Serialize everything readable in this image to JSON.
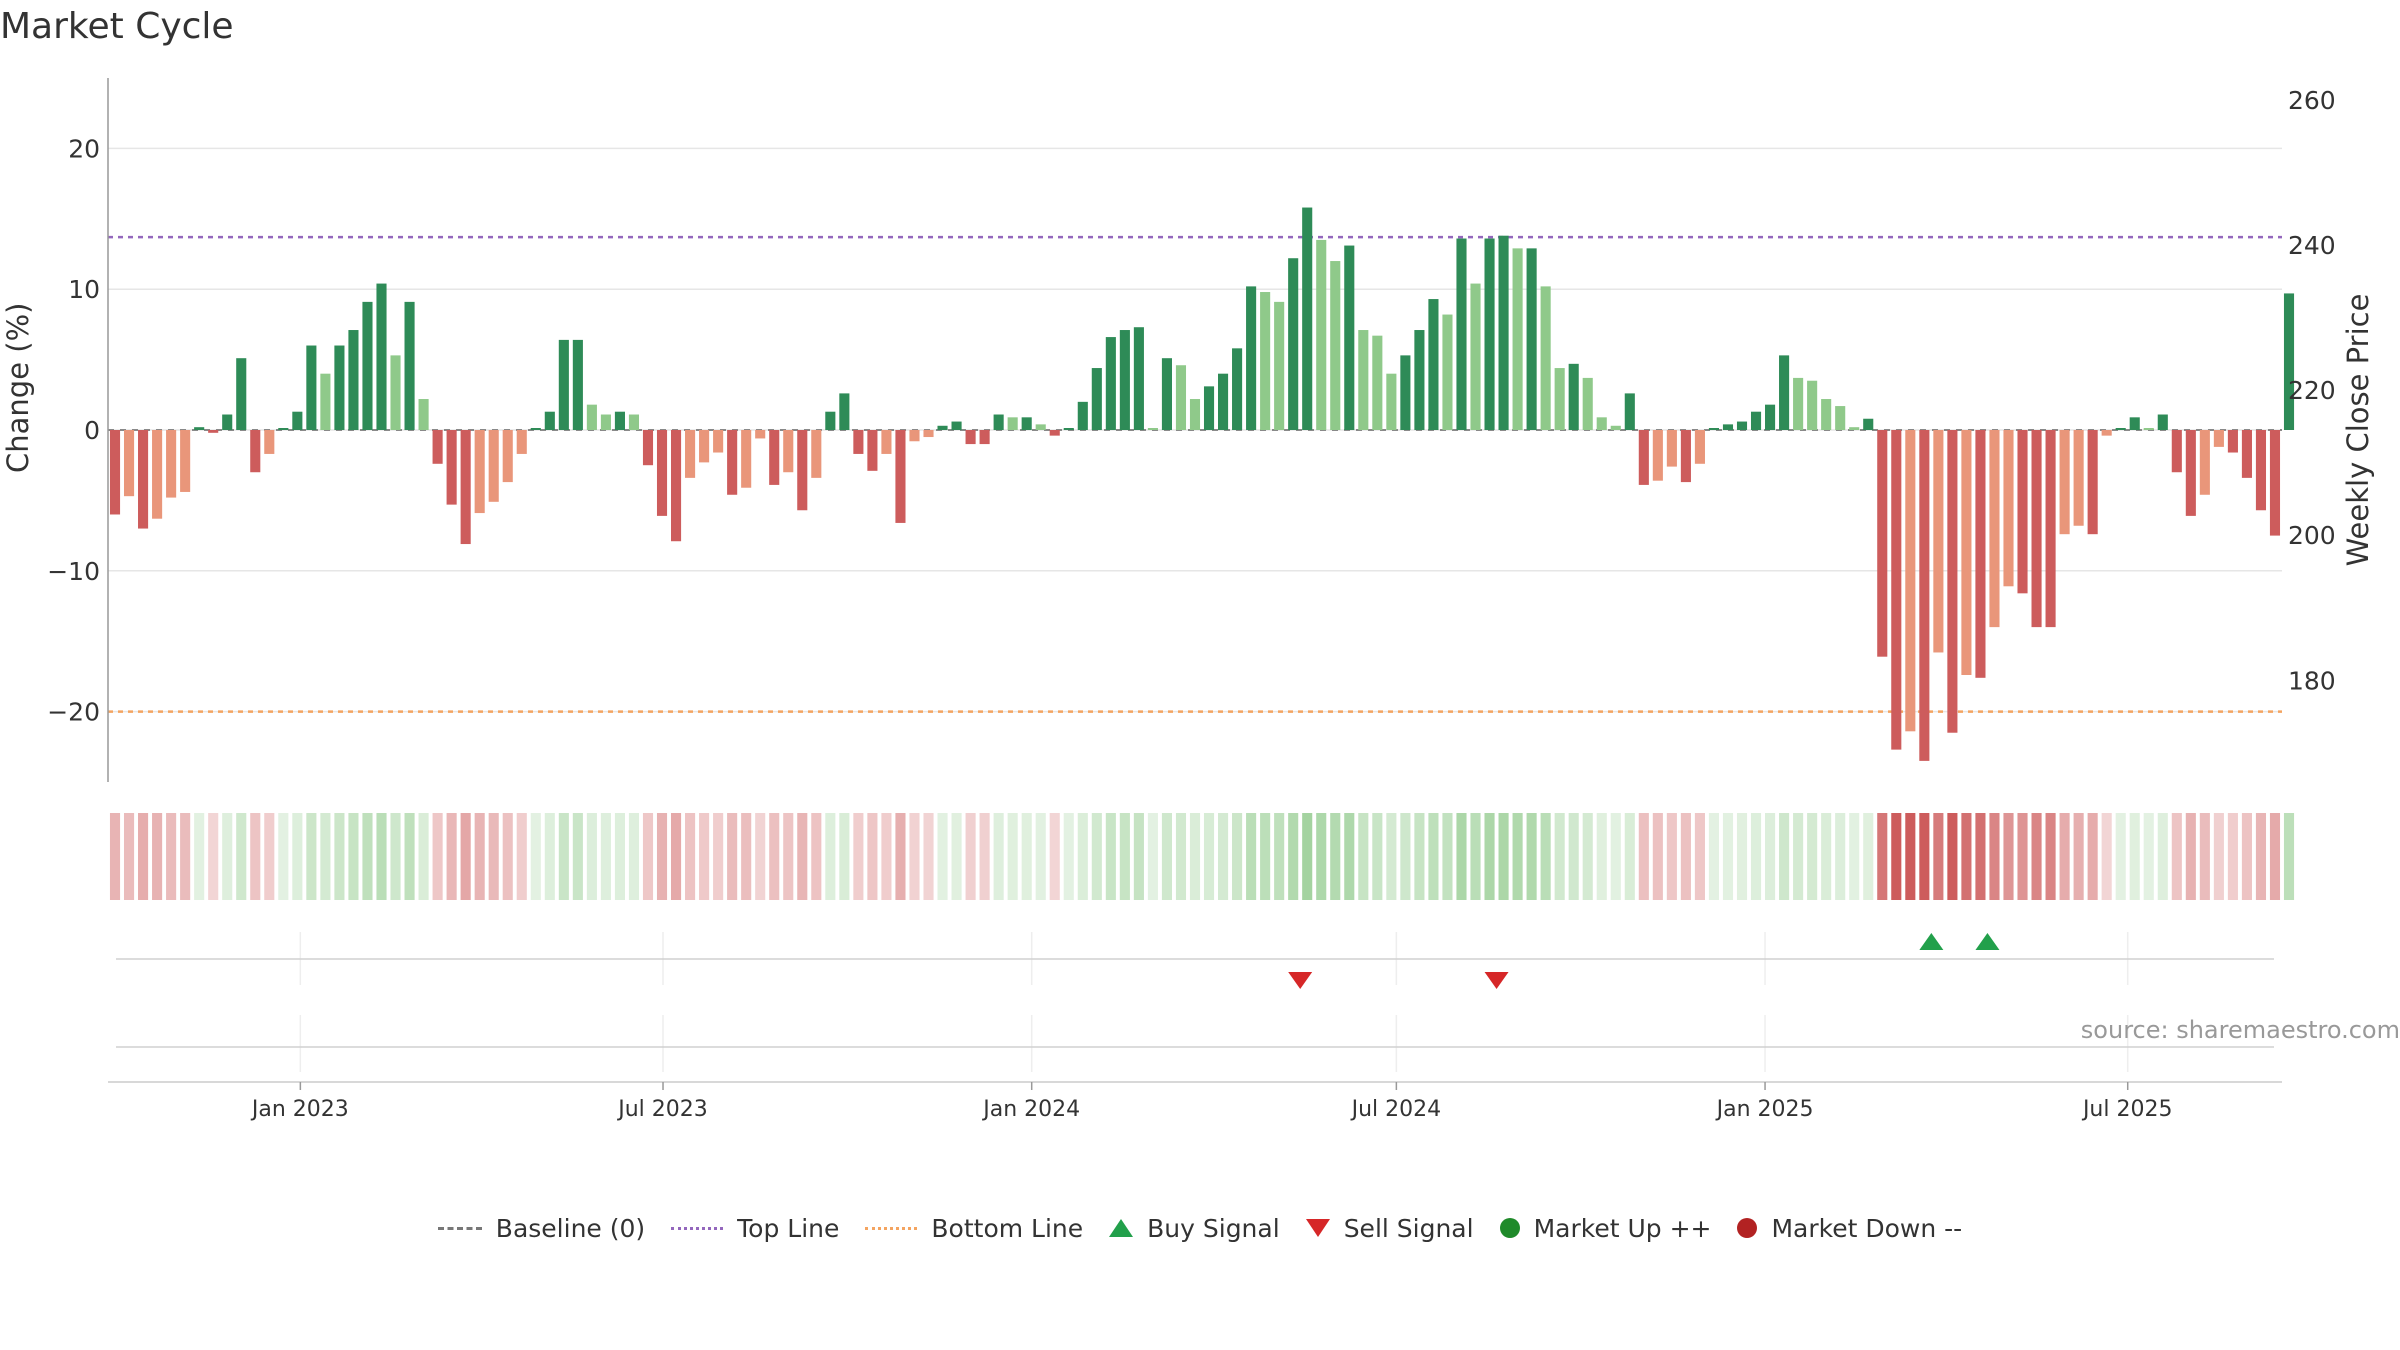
{
  "title": "Market Cycle",
  "source": "source: sharemaestro.com",
  "colors": {
    "up_strong": "#2e8b57",
    "up_light": "#8fc98a",
    "down_strong": "#cd5c5c",
    "down_light": "#e9967a",
    "top_line": "#9467bd",
    "bottom_line": "#f4a460",
    "buy": "#22a04b",
    "sell": "#d62728"
  },
  "legend": [
    {
      "label": "Baseline (0)",
      "icon": "dashed-line-icon"
    },
    {
      "label": "Top Line",
      "icon": "dotted-purple-line-icon"
    },
    {
      "label": "Bottom Line",
      "icon": "dotted-orange-line-icon"
    },
    {
      "label": "Buy Signal",
      "icon": "triangle-up-icon"
    },
    {
      "label": "Sell Signal",
      "icon": "triangle-down-icon"
    },
    {
      "label": "Market Up ++",
      "icon": "green-circle-icon"
    },
    {
      "label": "Market Down --",
      "icon": "red-circle-icon"
    }
  ],
  "chart_data": {
    "type": "bar",
    "title": "Market Cycle",
    "ylabel": "Change (%)",
    "ylabel_right": "Weekly Close Price",
    "ylim": [
      -25,
      25
    ],
    "ylim_right": [
      166,
      263
    ],
    "yticks": [
      20,
      10,
      0,
      -10,
      -20
    ],
    "ytick_labels": [
      "20",
      "10",
      "0",
      "−10",
      "−20"
    ],
    "yticks_right": [
      260,
      240,
      220,
      200,
      180
    ],
    "x_range": [
      "2022-09-27",
      "2025-09-16"
    ],
    "x_ticks": [
      "2023-01-01",
      "2023-07-01",
      "2024-01-01",
      "2024-07-01",
      "2025-01-01",
      "2025-07-01"
    ],
    "x_tick_labels": [
      "Jan 2023",
      "Jul 2023",
      "Jan 2024",
      "Jul 2024",
      "Jan 2025",
      "Jul 2025"
    ],
    "first_week": "2022-09-27",
    "top_line": 13.7,
    "bottom_line": -20,
    "grid": true,
    "values": [
      -6,
      -4.7,
      -7,
      -6.3,
      -4.8,
      -4.4,
      0.2,
      -0.2,
      1.1,
      5.1,
      -3,
      -1.7,
      0,
      1.3,
      6,
      4,
      6,
      7.1,
      9.1,
      10.4,
      5.3,
      9.1,
      2.2,
      -2.4,
      -5.3,
      -8.1,
      -5.9,
      -5.1,
      -3.7,
      -1.7,
      0,
      1.3,
      6.4,
      6.4,
      1.8,
      1.1,
      1.3,
      1.1,
      -2.5,
      -6.1,
      -7.9,
      -3.4,
      -2.3,
      -1.6,
      -4.6,
      -4.1,
      -0.6,
      -3.9,
      -3,
      -5.7,
      -3.4,
      1.3,
      2.6,
      -1.7,
      -2.9,
      -1.7,
      -6.6,
      -0.8,
      -0.5,
      0.3,
      0.6,
      -1,
      -1,
      1.1,
      0.9,
      0.9,
      0.4,
      -0.4,
      0,
      2,
      4.4,
      6.6,
      7.1,
      7.3,
      0,
      5.1,
      4.6,
      2.2,
      3.1,
      4,
      5.8,
      10.2,
      9.8,
      9.1,
      12.2,
      15.8,
      13.5,
      12,
      13.1,
      7.1,
      6.7,
      4,
      5.3,
      7.1,
      9.3,
      8.2,
      13.6,
      10.4,
      13.6,
      13.8,
      12.9,
      12.9,
      10.2,
      4.4,
      4.7,
      3.7,
      0.9,
      0.3,
      2.6,
      -3.9,
      -3.6,
      -2.6,
      -3.7,
      -2.4,
      0,
      0.4,
      0.6,
      1.3,
      1.8,
      5.3,
      3.7,
      3.5,
      2.2,
      1.7,
      0.2,
      0.8,
      -16.1,
      -22.7,
      -21.4,
      -23.5,
      -15.8,
      -21.5,
      -17.4,
      -17.6,
      -14,
      -11.1,
      -11.6,
      -14,
      -14,
      -7.4,
      -6.8,
      -7.4,
      -0.4,
      0,
      0.9,
      0,
      1.1,
      -3,
      -6.1,
      -4.6,
      -1.2,
      -1.6,
      -3.4,
      -5.7,
      -7.5,
      9.7
    ],
    "price_series": [],
    "regime_band": [],
    "buy_signals": [
      {
        "date": "2025-03-25"
      },
      {
        "date": "2025-04-22"
      }
    ],
    "sell_signals": [
      {
        "date": "2024-05-14"
      },
      {
        "date": "2024-08-20"
      }
    ]
  }
}
